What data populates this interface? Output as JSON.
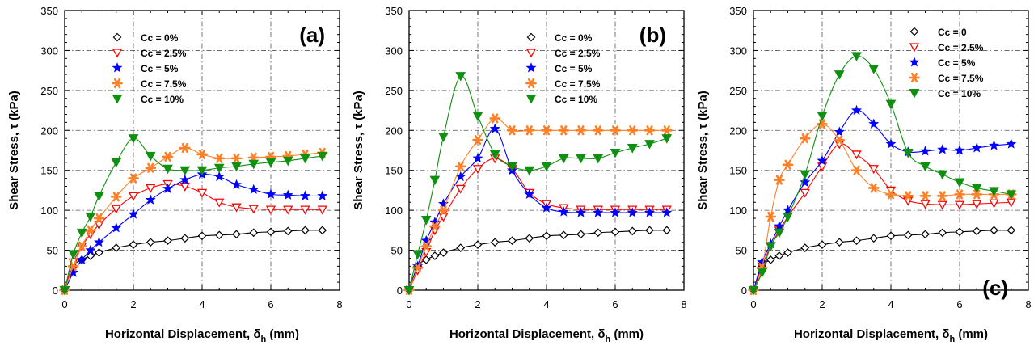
{
  "chart_data": [
    {
      "type": "line",
      "panel_label": "(a)",
      "xlabel": "Horizontal Displacement, δh (mm)",
      "ylabel": "Shear Stress, τ (kPa)",
      "xlim": [
        0,
        8
      ],
      "ylim": [
        0,
        350
      ],
      "xticks": [
        "0",
        "2",
        "4",
        "6",
        "8"
      ],
      "yticks": [
        "0",
        "50",
        "100",
        "150",
        "200",
        "250",
        "300",
        "350"
      ],
      "grid": true,
      "legend_position": "top-left",
      "series": [
        {
          "name": "Cc = 0%",
          "marker": "diamond",
          "color": "#000000",
          "x": [
            0,
            0.25,
            0.5,
            0.75,
            1,
            1.5,
            2,
            2.5,
            3,
            3.5,
            4,
            4.5,
            5,
            5.5,
            6,
            6.5,
            7,
            7.5
          ],
          "y": [
            0,
            30,
            38,
            43,
            47,
            53,
            57,
            60,
            62,
            65,
            68,
            69,
            70,
            72,
            73,
            74,
            75,
            75
          ]
        },
        {
          "name": "Cc = 2.5%",
          "marker": "triangle-down-open",
          "color": "#ff0000",
          "x": [
            0,
            0.25,
            0.5,
            0.75,
            1,
            1.5,
            2,
            2.5,
            3,
            3.5,
            4,
            4.5,
            5,
            5.5,
            6,
            6.5,
            7,
            7.5
          ],
          "y": [
            0,
            35,
            55,
            70,
            82,
            102,
            118,
            128,
            133,
            130,
            122,
            110,
            104,
            102,
            101,
            101,
            101,
            101
          ]
        },
        {
          "name": "Cc = 5%",
          "marker": "star",
          "color": "#0000ff",
          "x": [
            0,
            0.25,
            0.5,
            0.75,
            1,
            1.5,
            2,
            2.5,
            3,
            3.5,
            4,
            4.5,
            5,
            5.5,
            6,
            6.5,
            7,
            7.5
          ],
          "y": [
            0,
            22,
            38,
            50,
            60,
            78,
            95,
            113,
            127,
            138,
            145,
            142,
            132,
            126,
            120,
            119,
            118,
            118
          ]
        },
        {
          "name": "Cc = 7.5%",
          "marker": "asterisk",
          "color": "#ff7f27",
          "x": [
            0,
            0.25,
            0.5,
            0.75,
            1,
            1.5,
            2,
            2.5,
            3,
            3.5,
            4,
            4.5,
            5,
            5.5,
            6,
            6.5,
            7,
            7.5
          ],
          "y": [
            0,
            30,
            55,
            75,
            90,
            117,
            140,
            153,
            167,
            178,
            170,
            165,
            165,
            166,
            167,
            168,
            170,
            172
          ]
        },
        {
          "name": "Cc = 10%",
          "marker": "triangle-down",
          "color": "#109010",
          "x": [
            0,
            0.25,
            0.5,
            0.75,
            1,
            1.5,
            2,
            2.5,
            3,
            3.5,
            4,
            4.5,
            5,
            5.5,
            6,
            6.5,
            7,
            7.5
          ],
          "y": [
            0,
            45,
            72,
            92,
            118,
            160,
            190,
            168,
            152,
            150,
            150,
            153,
            155,
            158,
            160,
            162,
            165,
            168
          ]
        }
      ]
    },
    {
      "type": "line",
      "panel_label": "(b)",
      "xlabel": "Horizontal Displacement, δh (mm)",
      "ylabel": "Shear Stress, τ (kPa)",
      "xlim": [
        0,
        8
      ],
      "ylim": [
        0,
        350
      ],
      "xticks": [
        "0",
        "2",
        "4",
        "6",
        "8"
      ],
      "yticks": [
        "0",
        "50",
        "100",
        "150",
        "200",
        "250",
        "300",
        "350"
      ],
      "grid": true,
      "legend_position": "top-right",
      "series": [
        {
          "name": "Cc = 0%",
          "marker": "diamond",
          "color": "#000000",
          "x": [
            0,
            0.25,
            0.5,
            0.75,
            1,
            1.5,
            2,
            2.5,
            3,
            3.5,
            4,
            4.5,
            5,
            5.5,
            6,
            6.5,
            7,
            7.5
          ],
          "y": [
            0,
            30,
            38,
            43,
            47,
            53,
            57,
            60,
            62,
            65,
            68,
            69,
            70,
            72,
            73,
            74,
            75,
            75
          ]
        },
        {
          "name": "Cc = 2.5%",
          "marker": "triangle-down-open",
          "color": "#ff0000",
          "x": [
            0,
            0.25,
            0.5,
            0.75,
            1,
            1.5,
            2,
            2.5,
            3,
            3.5,
            4,
            4.5,
            5,
            5.5,
            6,
            6.5,
            7,
            7.5
          ],
          "y": [
            0,
            25,
            48,
            75,
            92,
            127,
            152,
            165,
            152,
            122,
            108,
            103,
            101,
            101,
            101,
            101,
            101,
            101
          ]
        },
        {
          "name": "Cc = 5%",
          "marker": "star",
          "color": "#0000ff",
          "x": [
            0,
            0.25,
            0.5,
            0.75,
            1,
            1.5,
            2,
            2.5,
            3,
            3.5,
            4,
            4.5,
            5,
            5.5,
            6,
            6.5,
            7,
            7.5
          ],
          "y": [
            0,
            30,
            62,
            85,
            108,
            142,
            165,
            202,
            150,
            120,
            103,
            98,
            97,
            97,
            97,
            97,
            97,
            97
          ]
        },
        {
          "name": "Cc = 7.5%",
          "marker": "asterisk",
          "color": "#ff7f27",
          "x": [
            0,
            0.25,
            0.5,
            0.75,
            1,
            1.5,
            2,
            2.5,
            3,
            3.5,
            4,
            4.5,
            5,
            5.5,
            6,
            6.5,
            7,
            7.5
          ],
          "y": [
            0,
            28,
            55,
            80,
            100,
            155,
            188,
            215,
            200,
            200,
            200,
            200,
            200,
            200,
            200,
            200,
            200,
            200
          ]
        },
        {
          "name": "Cc = 10%",
          "marker": "triangle-down",
          "color": "#109010",
          "x": [
            0,
            0.25,
            0.5,
            0.75,
            1,
            1.5,
            2,
            2.5,
            3,
            3.5,
            4,
            4.5,
            5,
            5.5,
            6,
            6.5,
            7,
            7.5
          ],
          "y": [
            0,
            45,
            88,
            138,
            192,
            268,
            218,
            170,
            155,
            150,
            155,
            165,
            165,
            165,
            172,
            178,
            183,
            190
          ]
        }
      ]
    },
    {
      "type": "line",
      "panel_label": "(c)",
      "xlabel": "Horizontal Displacement, δh (mm)",
      "ylabel": "Shear Stress, τ (kPa)",
      "xlim": [
        0,
        8
      ],
      "ylim": [
        0,
        350
      ],
      "xticks": [
        "0",
        "2",
        "4",
        "6",
        "8"
      ],
      "yticks": [
        "0",
        "50",
        "100",
        "150",
        "200",
        "250",
        "300",
        "350"
      ],
      "grid": true,
      "legend_position": "top-right",
      "series": [
        {
          "name": "Cc = 0",
          "marker": "diamond",
          "color": "#000000",
          "x": [
            0,
            0.25,
            0.5,
            0.75,
            1,
            1.5,
            2,
            2.5,
            3,
            3.5,
            4,
            4.5,
            5,
            5.5,
            6,
            6.5,
            7,
            7.5
          ],
          "y": [
            0,
            30,
            38,
            43,
            47,
            53,
            57,
            60,
            62,
            65,
            68,
            69,
            70,
            72,
            73,
            74,
            75,
            75
          ]
        },
        {
          "name": "Cc = 2.5%",
          "marker": "triangle-down-open",
          "color": "#ff0000",
          "x": [
            0,
            0.25,
            0.5,
            0.75,
            1,
            1.5,
            2,
            2.5,
            3,
            3.5,
            4,
            4.5,
            5,
            5.5,
            6,
            6.5,
            7,
            7.5
          ],
          "y": [
            0,
            30,
            55,
            75,
            92,
            122,
            155,
            183,
            170,
            152,
            125,
            112,
            108,
            107,
            107,
            108,
            109,
            110
          ]
        },
        {
          "name": "Cc = 5%",
          "marker": "star",
          "color": "#0000ff",
          "x": [
            0,
            0.25,
            0.5,
            0.75,
            1,
            1.5,
            2,
            2.5,
            3,
            3.5,
            4,
            4.5,
            5,
            5.5,
            6,
            6.5,
            7,
            7.5
          ],
          "y": [
            0,
            35,
            58,
            80,
            100,
            135,
            162,
            198,
            225,
            208,
            183,
            173,
            174,
            176,
            175,
            178,
            181,
            183
          ]
        },
        {
          "name": "Cc = 7.5%",
          "marker": "asterisk",
          "color": "#ff7f27",
          "x": [
            0,
            0.25,
            0.5,
            0.75,
            1,
            1.5,
            2,
            2.5,
            3,
            3.5,
            4,
            4.5,
            5,
            5.5,
            6,
            6.5,
            7,
            7.5
          ],
          "y": [
            0,
            28,
            92,
            138,
            157,
            190,
            208,
            188,
            150,
            128,
            120,
            118,
            118,
            118,
            120,
            120,
            120,
            120
          ]
        },
        {
          "name": "Cc = 10%",
          "marker": "triangle-down",
          "color": "#109010",
          "x": [
            0,
            0.25,
            0.5,
            0.75,
            1,
            1.5,
            2,
            2.5,
            3,
            3.5,
            4,
            4.5,
            5,
            5.5,
            6,
            6.5,
            7,
            7.5
          ],
          "y": [
            0,
            22,
            55,
            72,
            92,
            145,
            218,
            270,
            293,
            277,
            233,
            172,
            155,
            145,
            135,
            128,
            124,
            120
          ]
        }
      ]
    }
  ]
}
